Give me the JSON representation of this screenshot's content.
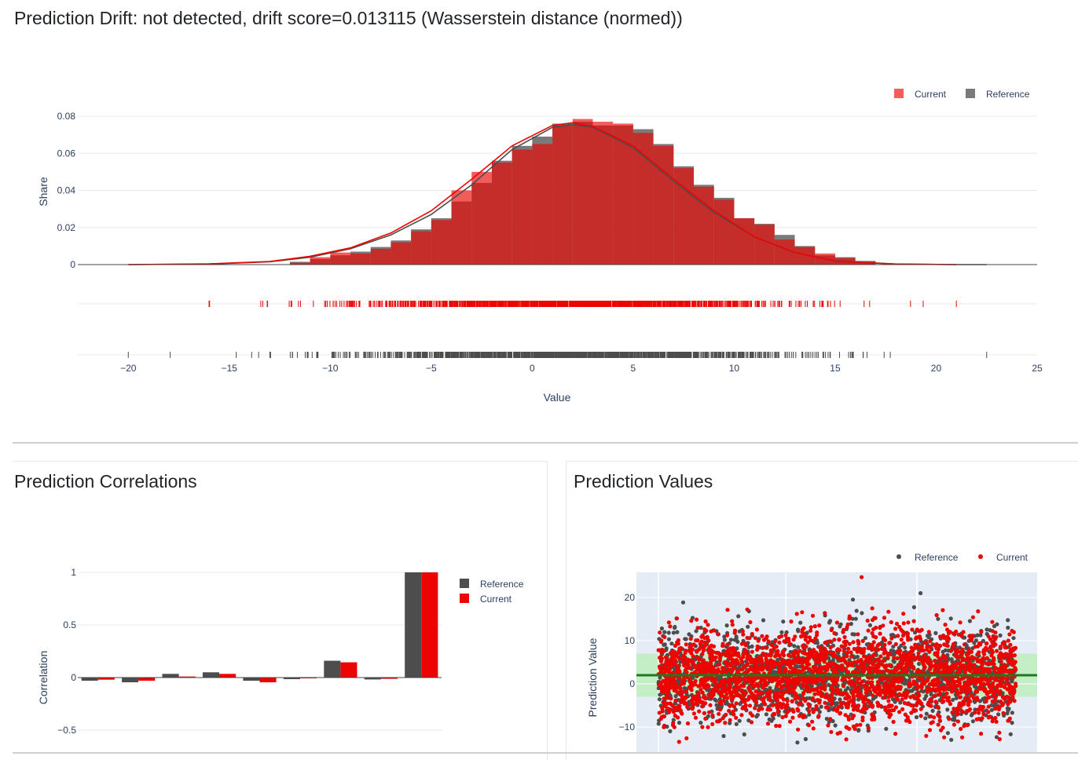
{
  "titles": {
    "drift": "Prediction Drift: not detected, drift score=0.013115 (Wasserstein distance (normed))",
    "correlations": "Prediction Correlations",
    "values": "Prediction Values"
  },
  "colors": {
    "current": "#ed0400",
    "reference": "#4d4d4d",
    "band": "#c4eec6",
    "mean_line": "#1f7a1f",
    "plot_bg": "#e5ecf6"
  },
  "chart_data": [
    {
      "type": "bar",
      "name": "distribution",
      "xlabel": "Value",
      "ylabel": "Share",
      "xlim": [
        -22.5,
        25
      ],
      "ylim": [
        0,
        0.082
      ],
      "x_ticks": [
        -20,
        -15,
        -10,
        -5,
        0,
        5,
        10,
        15,
        20,
        25
      ],
      "x_tick_labels": [
        "−20",
        "−15",
        "−10",
        "−5",
        "0",
        "5",
        "10",
        "15",
        "20",
        "25"
      ],
      "y_ticks": [
        0,
        0.02,
        0.04,
        0.06,
        0.08
      ],
      "y_tick_labels": [
        "0",
        "0.02",
        "0.04",
        "0.06",
        "0.08"
      ],
      "legend": [
        "Current",
        "Reference"
      ],
      "legend_position": "top-right",
      "bin_width": 1,
      "bin_starts": [
        -12,
        -11,
        -10,
        -9,
        -8,
        -7,
        -6,
        -5,
        -4,
        -3,
        -2,
        -1,
        0,
        1,
        2,
        3,
        4,
        5,
        6,
        7,
        8,
        9,
        10,
        11,
        12,
        13,
        14,
        15,
        16
      ],
      "series": [
        {
          "name": "Reference",
          "values": [
            0.0015,
            0.003,
            0.005,
            0.007,
            0.0095,
            0.013,
            0.019,
            0.025,
            0.034,
            0.044,
            0.056,
            0.064,
            0.069,
            0.076,
            0.077,
            0.075,
            0.075,
            0.073,
            0.065,
            0.053,
            0.043,
            0.036,
            0.025,
            0.022,
            0.016,
            0.01,
            0.005,
            0.004,
            0.002
          ]
        },
        {
          "name": "Current",
          "values": [
            0.001,
            0.004,
            0.0065,
            0.006,
            0.0085,
            0.012,
            0.018,
            0.024,
            0.04,
            0.05,
            0.055,
            0.062,
            0.065,
            0.075,
            0.0785,
            0.077,
            0.076,
            0.071,
            0.064,
            0.052,
            0.042,
            0.035,
            0.025,
            0.0215,
            0.0135,
            0.0095,
            0.006,
            0.0035,
            0.0015
          ]
        }
      ],
      "kde": {
        "x": [
          -20,
          -16,
          -13,
          -11,
          -9,
          -7,
          -5,
          -3,
          -1,
          1,
          2,
          3,
          5,
          7,
          9,
          11,
          13,
          15,
          18,
          21,
          22.5
        ],
        "reference": [
          0,
          0.0003,
          0.0015,
          0.004,
          0.0085,
          0.016,
          0.027,
          0.043,
          0.062,
          0.074,
          0.0755,
          0.074,
          0.063,
          0.045,
          0.028,
          0.015,
          0.0065,
          0.002,
          0.0003,
          0,
          0
        ],
        "current": [
          0,
          0.0004,
          0.0017,
          0.0045,
          0.009,
          0.017,
          0.029,
          0.046,
          0.064,
          0.075,
          0.0765,
          0.0745,
          0.064,
          0.046,
          0.029,
          0.015,
          0.0065,
          0.0018,
          0.0003,
          0,
          null
        ]
      },
      "rug": {
        "current_range": [
          -16,
          21
        ],
        "reference_range": [
          -20,
          22.5
        ]
      }
    },
    {
      "type": "bar",
      "name": "correlations",
      "ylabel": "Correlation",
      "ylim": [
        -0.55,
        1.1
      ],
      "y_ticks": [
        -0.5,
        0,
        0.5,
        1
      ],
      "y_tick_labels": [
        "−0.5",
        "0",
        "0.5",
        "1"
      ],
      "legend": [
        "Reference",
        "Current"
      ],
      "legend_position": "top-right",
      "series": [
        {
          "name": "Reference",
          "values": [
            -0.03,
            -0.045,
            0.035,
            0.05,
            -0.03,
            -0.015,
            0.16,
            -0.018,
            1.0
          ]
        },
        {
          "name": "Current",
          "values": [
            -0.02,
            -0.03,
            0.01,
            0.035,
            -0.045,
            -0.005,
            0.145,
            -0.012,
            1.0
          ]
        }
      ]
    },
    {
      "type": "scatter",
      "name": "prediction-values",
      "ylabel": "Prediction Value",
      "ylim": [
        -15.5,
        26
      ],
      "y_ticks": [
        -10,
        0,
        10,
        20
      ],
      "y_tick_labels": [
        "−10",
        "0",
        "10",
        "20"
      ],
      "legend": [
        "Reference",
        "Current"
      ],
      "legend_position": "top-right",
      "mean": 2,
      "band": [
        -3,
        7
      ],
      "grid": true
    }
  ]
}
